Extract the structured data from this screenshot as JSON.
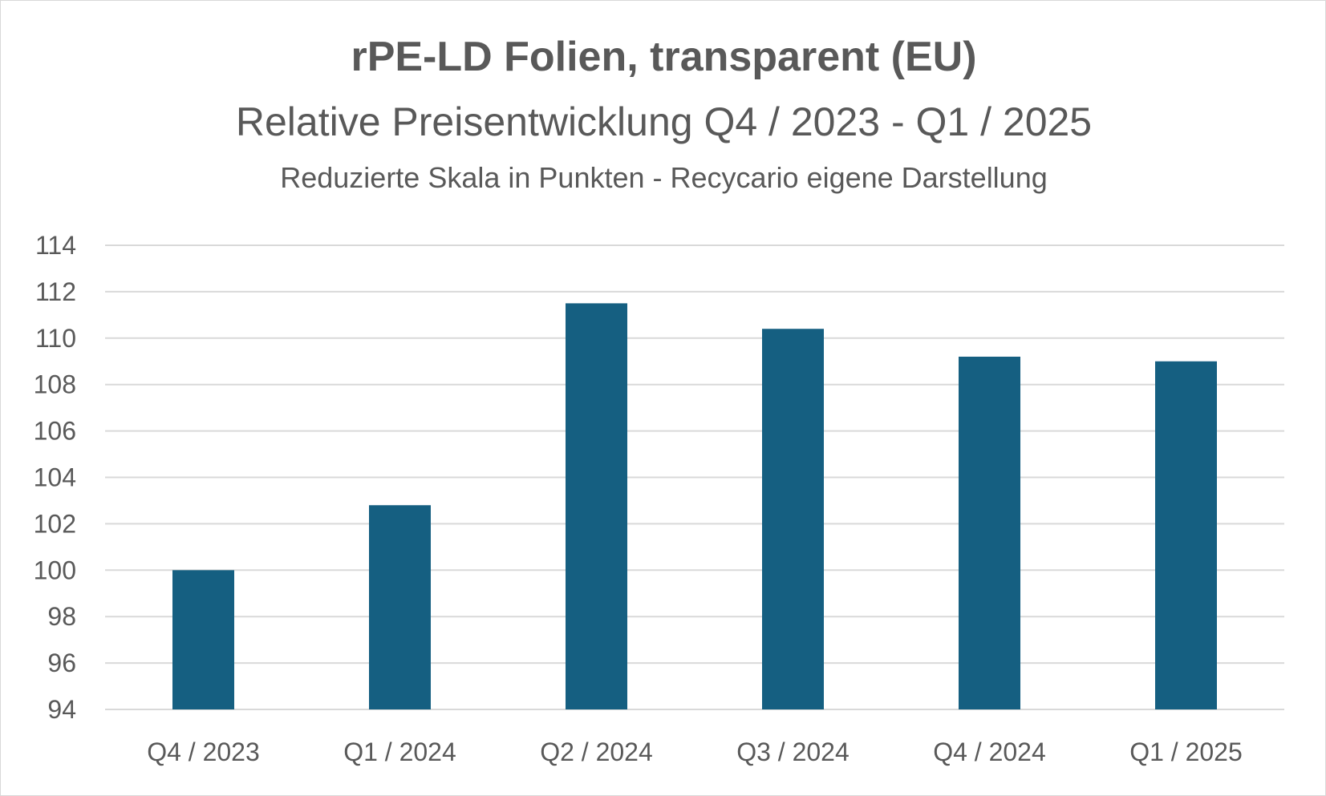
{
  "chart_data": {
    "type": "bar",
    "title": "rPE-LD Folien, transparent (EU)",
    "subtitle": "Relative Preisentwicklung Q4 / 2023 - Q1 / 2025",
    "note": "Reduzierte Skala in Punkten - Recycario eigene Darstellung",
    "categories": [
      "Q4 / 2023",
      "Q1 / 2024",
      "Q2 / 2024",
      "Q3 / 2024",
      "Q4 / 2024",
      "Q1 / 2025"
    ],
    "values": [
      100,
      102.8,
      111.5,
      110.4,
      109.2,
      109.0
    ],
    "ylim": [
      94,
      114
    ],
    "yticks": [
      "94",
      "96",
      "98",
      "100",
      "102",
      "104",
      "106",
      "108",
      "110",
      "112",
      "114"
    ],
    "xlabel": "",
    "ylabel": "",
    "grid": true,
    "legend": "none",
    "bar_color": "#155f81",
    "grid_color": "#d9d9d9"
  }
}
